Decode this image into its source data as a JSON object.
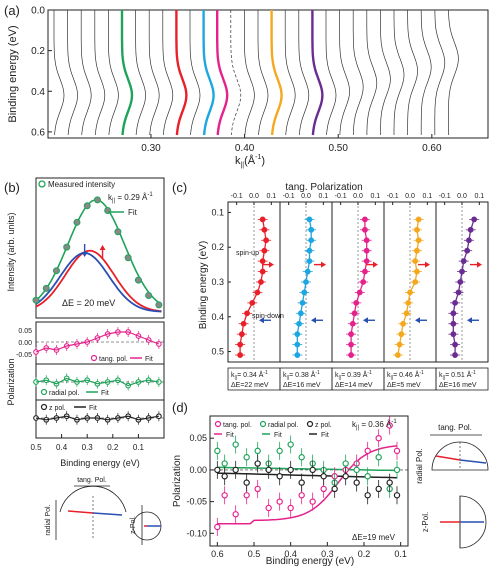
{
  "colors": {
    "green": "#1fa35a",
    "red": "#e8202a",
    "cyan": "#1ea6e0",
    "magenta": "#e5228c",
    "orange": "#f4a81f",
    "purple": "#6a2c91",
    "blue": "#2a4fb3",
    "black": "#222222",
    "gray": "#888888"
  },
  "panel_labels": {
    "a": "(a)",
    "b": "(b)",
    "c": "(c)",
    "d": "(d)"
  },
  "chart_data": [
    {
      "id": "a",
      "type": "line",
      "ylabel": "Binding energy (eV)",
      "xlabel": "k",
      "xlabel_sub": "||",
      "xlabel_unit": "(Å",
      "xlabel_sup": "-1",
      "xlabel_close": ")",
      "yticks": [
        "0.0",
        "0.2",
        "0.4",
        "0.6"
      ],
      "ytick_values": [
        0.0,
        0.2,
        0.4,
        0.6
      ],
      "xticks": [
        "0.30",
        "0.40",
        "0.50",
        "0.60"
      ],
      "xtick_values": [
        0.3,
        0.4,
        0.5,
        0.6
      ],
      "ylim": [
        0.0,
        0.63
      ],
      "xlim": [
        0.19,
        0.66
      ],
      "curve_count": 30,
      "highlighted": [
        {
          "index": 5,
          "color": "green"
        },
        {
          "index": 9,
          "color": "red"
        },
        {
          "index": 11,
          "color": "cyan"
        },
        {
          "index": 12,
          "color": "magenta"
        },
        {
          "index": 16,
          "color": "orange"
        },
        {
          "index": 19,
          "color": "purple"
        }
      ]
    },
    {
      "id": "b_top",
      "type": "line",
      "ylabel": "Intensity (arb. units)",
      "legend": [
        {
          "label": "Measured intensity",
          "marker": "circle-green"
        }
      ],
      "k_label": "k",
      "k_sub": "||",
      "k_value": " = 0.29 Å",
      "k_sup": "-1",
      "fit_label": "Fit",
      "delta_e": "ΔE = 20 meV",
      "x": [
        0.5,
        0.46,
        0.42,
        0.38,
        0.34,
        0.3,
        0.26,
        0.22,
        0.18,
        0.14,
        0.1,
        0.06,
        0.02
      ],
      "measured": [
        0.1,
        0.2,
        0.35,
        0.55,
        0.76,
        0.9,
        0.95,
        0.86,
        0.68,
        0.46,
        0.27,
        0.14,
        0.06
      ],
      "xlim": [
        0.5,
        0.0
      ]
    },
    {
      "id": "b_pol",
      "type": "scatter",
      "ylabel": "Polarization",
      "xlabel": "Binding energy (eV)",
      "xticks": [
        "0.5",
        "0.4",
        "0.3",
        "0.2",
        "0.1"
      ],
      "xtick_values": [
        0.5,
        0.4,
        0.3,
        0.2,
        0.1
      ],
      "xlim": [
        0.5,
        0.0
      ],
      "yticks": [
        "0.05",
        "0.00",
        "-0.05"
      ],
      "series": [
        {
          "name": "tang. pol.",
          "color": "magenta",
          "x": [
            0.5,
            0.46,
            0.42,
            0.38,
            0.34,
            0.3,
            0.26,
            0.22,
            0.18,
            0.14,
            0.1,
            0.06,
            0.02
          ],
          "values": [
            -0.05,
            -0.03,
            -0.04,
            -0.02,
            -0.01,
            0.0,
            0.02,
            0.04,
            0.05,
            0.05,
            0.03,
            0.01,
            -0.01
          ]
        },
        {
          "name": "radial pol.",
          "color": "green",
          "x": [
            0.5,
            0.46,
            0.42,
            0.38,
            0.34,
            0.3,
            0.26,
            0.22,
            0.18,
            0.14,
            0.1,
            0.06,
            0.02
          ],
          "values": [
            0.0,
            0.01,
            -0.01,
            0.02,
            0.0,
            0.01,
            -0.01,
            0.0,
            0.01,
            -0.02,
            0.0,
            0.01,
            0.0
          ]
        },
        {
          "name": "z pol.",
          "color": "black",
          "x": [
            0.5,
            0.46,
            0.42,
            0.38,
            0.34,
            0.3,
            0.26,
            0.22,
            0.18,
            0.14,
            0.1,
            0.06,
            0.02
          ],
          "values": [
            0.0,
            -0.01,
            0.0,
            0.01,
            -0.01,
            0.0,
            0.0,
            -0.01,
            0.0,
            0.01,
            -0.01,
            0.0,
            0.01
          ]
        }
      ],
      "fit_label": "Fit"
    },
    {
      "id": "c",
      "type": "scatter",
      "title": "tang. Polarization",
      "ylabel": "Binding energy (eV)",
      "yticks": [
        "0.1",
        "0.2",
        "0.3",
        "0.4",
        "0.5"
      ],
      "ytick_values": [
        0.1,
        0.2,
        0.3,
        0.4,
        0.5
      ],
      "ylim": [
        0.07,
        0.53
      ],
      "top_ticks": [
        "-0.1",
        "0.0",
        "0.1"
      ],
      "annotations": [
        "spin-up",
        "spin-down"
      ],
      "panels": [
        {
          "color": "red",
          "k": "0.34",
          "de": "22",
          "energy": [
            0.12,
            0.15,
            0.18,
            0.21,
            0.24,
            0.27,
            0.3,
            0.33,
            0.36,
            0.39,
            0.42,
            0.45,
            0.48,
            0.51
          ],
          "pol": [
            0.05,
            0.06,
            0.07,
            0.06,
            0.05,
            0.05,
            0.04,
            0.02,
            -0.01,
            -0.04,
            -0.06,
            -0.07,
            -0.08,
            -0.08
          ]
        },
        {
          "color": "cyan",
          "k": "0.38",
          "de": "16",
          "energy": [
            0.12,
            0.15,
            0.18,
            0.21,
            0.24,
            0.27,
            0.3,
            0.33,
            0.36,
            0.39,
            0.42,
            0.45,
            0.48,
            0.51
          ],
          "pol": [
            0.02,
            0.03,
            0.03,
            0.02,
            0.02,
            0.01,
            0.0,
            -0.01,
            -0.02,
            -0.03,
            -0.04,
            -0.05,
            -0.05,
            -0.05
          ]
        },
        {
          "color": "magenta",
          "k": "0.39",
          "de": "14",
          "energy": [
            0.12,
            0.15,
            0.18,
            0.21,
            0.24,
            0.27,
            0.3,
            0.33,
            0.36,
            0.39,
            0.42,
            0.45,
            0.48,
            0.51
          ],
          "pol": [
            0.04,
            0.04,
            0.05,
            0.05,
            0.05,
            0.04,
            0.03,
            0.01,
            -0.01,
            -0.02,
            -0.03,
            -0.04,
            -0.04,
            -0.04
          ]
        },
        {
          "color": "orange",
          "k": "0.46",
          "de": "5",
          "energy": [
            0.12,
            0.15,
            0.18,
            0.21,
            0.24,
            0.27,
            0.3,
            0.33,
            0.36,
            0.39,
            0.42,
            0.45,
            0.48,
            0.51
          ],
          "pol": [
            0.05,
            0.04,
            0.05,
            0.04,
            0.03,
            0.04,
            0.03,
            0.0,
            -0.01,
            -0.02,
            -0.04,
            -0.05,
            -0.06,
            -0.07
          ]
        },
        {
          "color": "purple",
          "k": "0.51",
          "de": "16",
          "energy": [
            0.12,
            0.15,
            0.18,
            0.21,
            0.24,
            0.27,
            0.3,
            0.33,
            0.36,
            0.39,
            0.42,
            0.45,
            0.48,
            0.51
          ],
          "pol": [
            0.07,
            0.05,
            0.04,
            0.03,
            0.01,
            0.0,
            -0.01,
            -0.02,
            -0.04,
            -0.05,
            -0.05,
            -0.05,
            -0.04,
            -0.04
          ]
        }
      ]
    },
    {
      "id": "d",
      "type": "scatter",
      "ylabel": "Polarization",
      "xlabel": "Binding energy (eV)",
      "xticks": [
        "0.6",
        "0.5",
        "0.4",
        "0.3",
        "0.2",
        "0.1"
      ],
      "xtick_values": [
        0.6,
        0.5,
        0.4,
        0.3,
        0.2,
        0.1
      ],
      "xlim": [
        0.62,
        0.08
      ],
      "yticks": [
        "0.05",
        "0.00",
        "-0.05",
        "-0.10"
      ],
      "ytick_values": [
        0.05,
        0.0,
        -0.05,
        -0.1
      ],
      "ylim": [
        -0.12,
        0.085
      ],
      "k_label": "k",
      "k_sub": "||",
      "k_value": " = 0.36 Å",
      "k_sup": "-1",
      "delta_e": "ΔE=19 meV",
      "fit_label": "Fit",
      "series": [
        {
          "name": "tang. pol.",
          "color": "magenta",
          "x": [
            0.6,
            0.58,
            0.55,
            0.52,
            0.49,
            0.46,
            0.43,
            0.4,
            0.37,
            0.34,
            0.31,
            0.28,
            0.25,
            0.22,
            0.19,
            0.16,
            0.13,
            0.11
          ],
          "values": [
            -0.09,
            -0.04,
            -0.07,
            -0.04,
            -0.03,
            -0.06,
            -0.05,
            -0.06,
            -0.04,
            -0.05,
            -0.03,
            -0.01,
            0.0,
            0.01,
            0.03,
            0.05,
            0.07,
            0.03
          ]
        },
        {
          "name": "radial pol.",
          "color": "green",
          "x": [
            0.6,
            0.58,
            0.55,
            0.52,
            0.49,
            0.46,
            0.43,
            0.4,
            0.37,
            0.34,
            0.31,
            0.28,
            0.25,
            0.22,
            0.19,
            0.16,
            0.13,
            0.11
          ],
          "values": [
            0.03,
            0.01,
            0.04,
            0.02,
            0.03,
            0.01,
            0.03,
            0.04,
            0.02,
            0.01,
            0.0,
            -0.02,
            0.01,
            0.0,
            -0.01,
            0.02,
            -0.03,
            0.0
          ]
        },
        {
          "name": "z pol.",
          "color": "black",
          "x": [
            0.6,
            0.58,
            0.55,
            0.52,
            0.49,
            0.46,
            0.43,
            0.4,
            0.37,
            0.34,
            0.31,
            0.28,
            0.25,
            0.22,
            0.19,
            0.16,
            0.13,
            0.11
          ],
          "values": [
            0.0,
            -0.01,
            0.0,
            -0.02,
            0.01,
            0.0,
            -0.01,
            0.0,
            -0.02,
            0.0,
            -0.01,
            -0.03,
            -0.01,
            -0.02,
            -0.04,
            -0.03,
            -0.02,
            -0.04
          ]
        }
      ]
    }
  ],
  "insets": {
    "tang_pol": "tang. Pol.",
    "radial_pol": "radial Pol.",
    "z_pol": "z-Pol."
  }
}
